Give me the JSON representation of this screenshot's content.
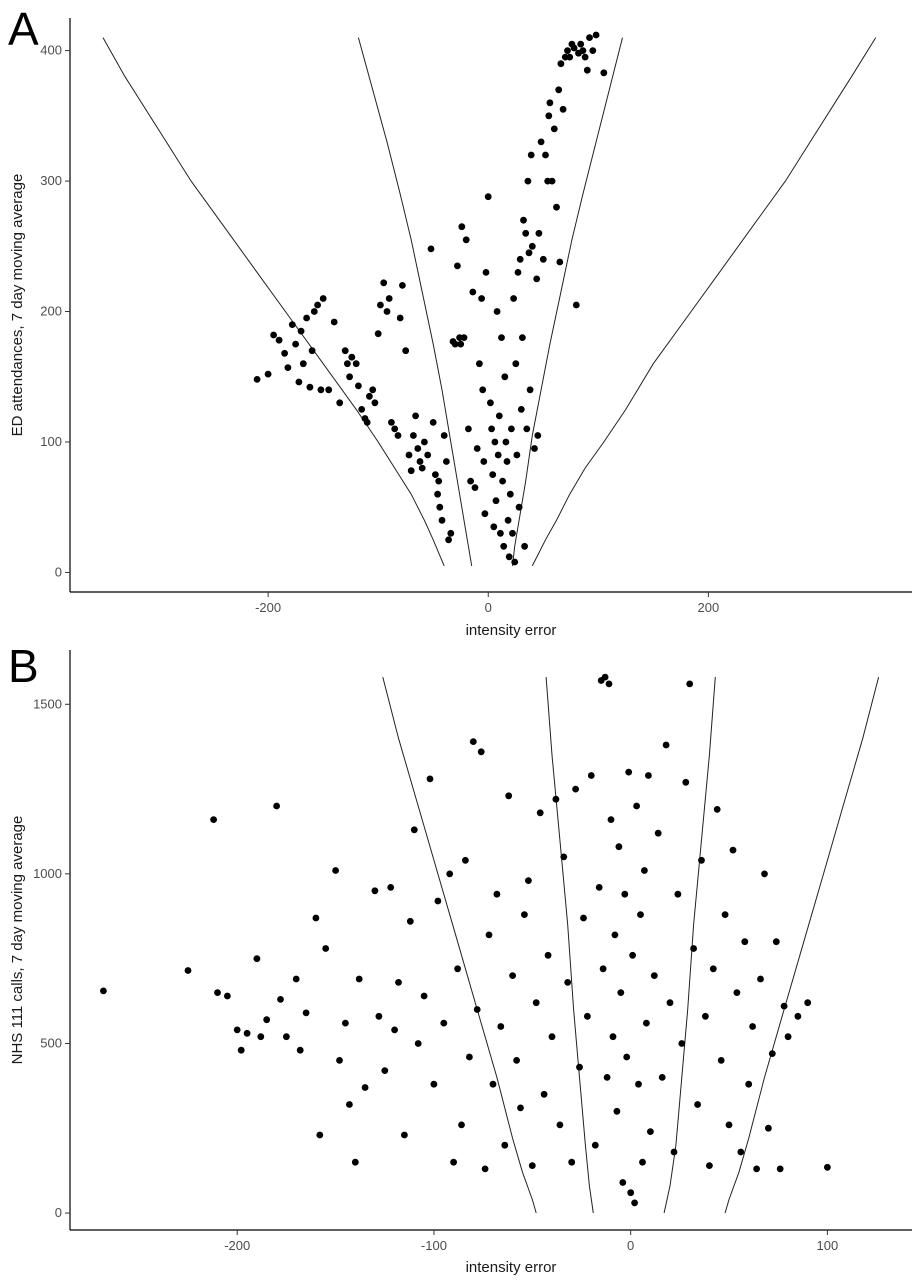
{
  "chart_data": [
    {
      "panel_label": "A",
      "type": "scatter",
      "xlabel": "intensity error",
      "ylabel": "ED attendances, 7 day moving average",
      "xlim": [
        -380,
        385
      ],
      "ylim": [
        -15,
        425
      ],
      "xticks": [
        -200,
        0,
        200
      ],
      "yticks": [
        0,
        100,
        200,
        300,
        400
      ],
      "grid": false,
      "funnel_limits": [
        {
          "x": [
            -350,
            -330,
            -300,
            -270,
            -240,
            -210,
            -180,
            -150,
            -120,
            -100,
            -85,
            -70,
            -58,
            -50,
            -45,
            -40
          ],
          "y": [
            410,
            380,
            340,
            300,
            265,
            230,
            195,
            160,
            125,
            100,
            80,
            60,
            40,
            25,
            15,
            5
          ]
        },
        {
          "x": [
            -118,
            -105,
            -92,
            -80,
            -70,
            -60,
            -50,
            -42,
            -35,
            -28,
            -22,
            -18,
            -15
          ],
          "y": [
            410,
            370,
            330,
            290,
            255,
            215,
            175,
            140,
            105,
            70,
            40,
            20,
            5
          ]
        },
        {
          "x": [
            122,
            110,
            98,
            86,
            76,
            66,
            56,
            48,
            40,
            34,
            28,
            24,
            22
          ],
          "y": [
            410,
            370,
            330,
            290,
            255,
            215,
            175,
            140,
            105,
            70,
            40,
            20,
            5
          ]
        },
        {
          "x": [
            352,
            330,
            300,
            270,
            240,
            210,
            180,
            150,
            125,
            105,
            88,
            74,
            62,
            52,
            46,
            40
          ],
          "y": [
            410,
            380,
            340,
            300,
            265,
            230,
            195,
            160,
            125,
            100,
            80,
            60,
            40,
            25,
            15,
            5
          ]
        }
      ],
      "points": [
        [
          -210,
          148
        ],
        [
          -200,
          152
        ],
        [
          -195,
          182
        ],
        [
          -190,
          178
        ],
        [
          -185,
          168
        ],
        [
          -182,
          157
        ],
        [
          -178,
          190
        ],
        [
          -175,
          175
        ],
        [
          -172,
          146
        ],
        [
          -170,
          185
        ],
        [
          -168,
          160
        ],
        [
          -165,
          195
        ],
        [
          -162,
          142
        ],
        [
          -160,
          170
        ],
        [
          -158,
          200
        ],
        [
          -155,
          205
        ],
        [
          -152,
          140
        ],
        [
          -150,
          210
        ],
        [
          -145,
          140
        ],
        [
          -140,
          192
        ],
        [
          -135,
          130
        ],
        [
          -130,
          170
        ],
        [
          -128,
          160
        ],
        [
          -126,
          150
        ],
        [
          -124,
          165
        ],
        [
          -120,
          160
        ],
        [
          -118,
          143
        ],
        [
          -115,
          125
        ],
        [
          -112,
          118
        ],
        [
          -110,
          115
        ],
        [
          -108,
          135
        ],
        [
          -105,
          140
        ],
        [
          -103,
          130
        ],
        [
          -100,
          183
        ],
        [
          -98,
          205
        ],
        [
          -95,
          222
        ],
        [
          -92,
          200
        ],
        [
          -90,
          210
        ],
        [
          -88,
          115
        ],
        [
          -85,
          110
        ],
        [
          -82,
          105
        ],
        [
          -80,
          195
        ],
        [
          -78,
          220
        ],
        [
          -75,
          170
        ],
        [
          -72,
          90
        ],
        [
          -70,
          78
        ],
        [
          -68,
          105
        ],
        [
          -66,
          120
        ],
        [
          -64,
          95
        ],
        [
          -62,
          85
        ],
        [
          -60,
          80
        ],
        [
          -58,
          100
        ],
        [
          -55,
          90
        ],
        [
          -52,
          248
        ],
        [
          -50,
          115
        ],
        [
          -48,
          75
        ],
        [
          -46,
          60
        ],
        [
          -45,
          70
        ],
        [
          -44,
          50
        ],
        [
          -42,
          40
        ],
        [
          -40,
          105
        ],
        [
          -38,
          85
        ],
        [
          -36,
          25
        ],
        [
          -34,
          30
        ],
        [
          -32,
          177
        ],
        [
          -30,
          175
        ],
        [
          -28,
          235
        ],
        [
          -26,
          180
        ],
        [
          -25,
          175
        ],
        [
          -24,
          265
        ],
        [
          -22,
          180
        ],
        [
          -20,
          255
        ],
        [
          -18,
          110
        ],
        [
          -16,
          70
        ],
        [
          -14,
          215
        ],
        [
          -12,
          65
        ],
        [
          -10,
          95
        ],
        [
          -8,
          160
        ],
        [
          -6,
          210
        ],
        [
          -5,
          140
        ],
        [
          -4,
          85
        ],
        [
          -3,
          45
        ],
        [
          -2,
          230
        ],
        [
          0,
          288
        ],
        [
          2,
          130
        ],
        [
          3,
          110
        ],
        [
          4,
          75
        ],
        [
          5,
          35
        ],
        [
          6,
          100
        ],
        [
          7,
          55
        ],
        [
          8,
          200
        ],
        [
          9,
          90
        ],
        [
          10,
          120
        ],
        [
          11,
          30
        ],
        [
          12,
          180
        ],
        [
          13,
          70
        ],
        [
          14,
          20
        ],
        [
          15,
          150
        ],
        [
          16,
          100
        ],
        [
          17,
          85
        ],
        [
          18,
          40
        ],
        [
          19,
          12
        ],
        [
          20,
          60
        ],
        [
          21,
          110
        ],
        [
          22,
          30
        ],
        [
          23,
          210
        ],
        [
          24,
          8
        ],
        [
          25,
          160
        ],
        [
          26,
          90
        ],
        [
          27,
          230
        ],
        [
          28,
          50
        ],
        [
          29,
          240
        ],
        [
          30,
          125
        ],
        [
          31,
          180
        ],
        [
          32,
          270
        ],
        [
          33,
          20
        ],
        [
          34,
          260
        ],
        [
          35,
          110
        ],
        [
          36,
          300
        ],
        [
          37,
          245
        ],
        [
          38,
          140
        ],
        [
          39,
          320
        ],
        [
          40,
          250
        ],
        [
          42,
          95
        ],
        [
          44,
          225
        ],
        [
          45,
          105
        ],
        [
          46,
          260
        ],
        [
          48,
          330
        ],
        [
          50,
          240
        ],
        [
          52,
          320
        ],
        [
          54,
          300
        ],
        [
          55,
          350
        ],
        [
          56,
          360
        ],
        [
          58,
          300
        ],
        [
          60,
          340
        ],
        [
          62,
          280
        ],
        [
          64,
          370
        ],
        [
          65,
          238
        ],
        [
          66,
          390
        ],
        [
          68,
          355
        ],
        [
          70,
          395
        ],
        [
          72,
          400
        ],
        [
          74,
          395
        ],
        [
          76,
          405
        ],
        [
          78,
          402
        ],
        [
          80,
          205
        ],
        [
          82,
          398
        ],
        [
          84,
          405
        ],
        [
          86,
          400
        ],
        [
          88,
          395
        ],
        [
          90,
          385
        ],
        [
          92,
          410
        ],
        [
          95,
          400
        ],
        [
          98,
          412
        ],
        [
          105,
          383
        ]
      ]
    },
    {
      "panel_label": "B",
      "type": "scatter",
      "xlabel": "intensity error",
      "ylabel": "NHS 111 calls, 7 day moving average",
      "xlim": [
        -285,
        143
      ],
      "ylim": [
        -50,
        1660
      ],
      "xticks": [
        -200,
        -100,
        0,
        100
      ],
      "yticks": [
        0,
        500,
        1000,
        1500
      ],
      "grid": false,
      "funnel_limits": [
        {
          "x": [
            -126,
            -118,
            -108,
            -98,
            -88,
            -78,
            -68,
            -60,
            -55,
            -50,
            -48
          ],
          "y": [
            1580,
            1400,
            1200,
            1000,
            800,
            600,
            400,
            220,
            120,
            40,
            0
          ]
        },
        {
          "x": [
            -43,
            -40,
            -36,
            -32,
            -29,
            -26,
            -23,
            -21,
            -19
          ],
          "y": [
            1580,
            1350,
            1100,
            850,
            600,
            400,
            200,
            80,
            0
          ]
        },
        {
          "x": [
            43,
            40,
            36,
            32,
            29,
            26,
            23,
            20,
            17
          ],
          "y": [
            1580,
            1350,
            1100,
            850,
            600,
            400,
            200,
            80,
            0
          ]
        },
        {
          "x": [
            126,
            118,
            108,
            98,
            88,
            78,
            68,
            60,
            55,
            50,
            48
          ],
          "y": [
            1580,
            1400,
            1200,
            1000,
            800,
            600,
            400,
            220,
            120,
            40,
            0
          ]
        }
      ],
      "points": [
        [
          -268,
          655
        ],
        [
          -225,
          715
        ],
        [
          -212,
          1160
        ],
        [
          -210,
          650
        ],
        [
          -205,
          640
        ],
        [
          -200,
          540
        ],
        [
          -198,
          480
        ],
        [
          -195,
          530
        ],
        [
          -190,
          750
        ],
        [
          -188,
          520
        ],
        [
          -185,
          570
        ],
        [
          -180,
          1200
        ],
        [
          -178,
          630
        ],
        [
          -175,
          520
        ],
        [
          -170,
          690
        ],
        [
          -168,
          480
        ],
        [
          -165,
          590
        ],
        [
          -160,
          870
        ],
        [
          -158,
          230
        ],
        [
          -155,
          780
        ],
        [
          -150,
          1010
        ],
        [
          -148,
          450
        ],
        [
          -145,
          560
        ],
        [
          -143,
          320
        ],
        [
          -140,
          150
        ],
        [
          -138,
          690
        ],
        [
          -135,
          370
        ],
        [
          -130,
          950
        ],
        [
          -128,
          580
        ],
        [
          -125,
          420
        ],
        [
          -122,
          960
        ],
        [
          -120,
          540
        ],
        [
          -118,
          680
        ],
        [
          -115,
          230
        ],
        [
          -112,
          860
        ],
        [
          -110,
          1130
        ],
        [
          -108,
          500
        ],
        [
          -105,
          640
        ],
        [
          -102,
          1280
        ],
        [
          -100,
          380
        ],
        [
          -98,
          920
        ],
        [
          -95,
          560
        ],
        [
          -92,
          1000
        ],
        [
          -90,
          150
        ],
        [
          -88,
          720
        ],
        [
          -86,
          260
        ],
        [
          -84,
          1040
        ],
        [
          -82,
          460
        ],
        [
          -80,
          1390
        ],
        [
          -78,
          600
        ],
        [
          -76,
          1360
        ],
        [
          -74,
          130
        ],
        [
          -72,
          820
        ],
        [
          -70,
          380
        ],
        [
          -68,
          940
        ],
        [
          -66,
          550
        ],
        [
          -64,
          200
        ],
        [
          -62,
          1230
        ],
        [
          -60,
          700
        ],
        [
          -58,
          450
        ],
        [
          -56,
          310
        ],
        [
          -54,
          880
        ],
        [
          -52,
          980
        ],
        [
          -50,
          140
        ],
        [
          -48,
          620
        ],
        [
          -46,
          1180
        ],
        [
          -44,
          350
        ],
        [
          -42,
          760
        ],
        [
          -40,
          520
        ],
        [
          -38,
          1220
        ],
        [
          -36,
          260
        ],
        [
          -34,
          1050
        ],
        [
          -32,
          680
        ],
        [
          -30,
          150
        ],
        [
          -28,
          1250
        ],
        [
          -26,
          430
        ],
        [
          -24,
          870
        ],
        [
          -22,
          580
        ],
        [
          -20,
          1290
        ],
        [
          -18,
          200
        ],
        [
          -16,
          960
        ],
        [
          -15,
          1570
        ],
        [
          -14,
          720
        ],
        [
          -13,
          1580
        ],
        [
          -12,
          400
        ],
        [
          -11,
          1560
        ],
        [
          -10,
          1160
        ],
        [
          -9,
          520
        ],
        [
          -8,
          820
        ],
        [
          -7,
          300
        ],
        [
          -6,
          1080
        ],
        [
          -5,
          650
        ],
        [
          -4,
          90
        ],
        [
          -3,
          940
        ],
        [
          -2,
          460
        ],
        [
          -1,
          1300
        ],
        [
          0,
          60
        ],
        [
          1,
          760
        ],
        [
          2,
          30
        ],
        [
          3,
          1200
        ],
        [
          4,
          380
        ],
        [
          5,
          880
        ],
        [
          6,
          150
        ],
        [
          7,
          1010
        ],
        [
          8,
          560
        ],
        [
          9,
          1290
        ],
        [
          10,
          240
        ],
        [
          12,
          700
        ],
        [
          14,
          1120
        ],
        [
          16,
          400
        ],
        [
          18,
          1380
        ],
        [
          20,
          620
        ],
        [
          22,
          180
        ],
        [
          24,
          940
        ],
        [
          26,
          500
        ],
        [
          28,
          1270
        ],
        [
          30,
          1560
        ],
        [
          32,
          780
        ],
        [
          34,
          320
        ],
        [
          36,
          1040
        ],
        [
          38,
          580
        ],
        [
          40,
          140
        ],
        [
          42,
          720
        ],
        [
          44,
          1190
        ],
        [
          46,
          450
        ],
        [
          48,
          880
        ],
        [
          50,
          260
        ],
        [
          52,
          1070
        ],
        [
          54,
          650
        ],
        [
          56,
          180
        ],
        [
          58,
          800
        ],
        [
          60,
          380
        ],
        [
          62,
          550
        ],
        [
          64,
          130
        ],
        [
          66,
          690
        ],
        [
          68,
          1000
        ],
        [
          70,
          250
        ],
        [
          72,
          470
        ],
        [
          74,
          800
        ],
        [
          76,
          130
        ],
        [
          78,
          610
        ],
        [
          80,
          520
        ],
        [
          85,
          580
        ],
        [
          90,
          620
        ],
        [
          100,
          135
        ]
      ]
    }
  ]
}
